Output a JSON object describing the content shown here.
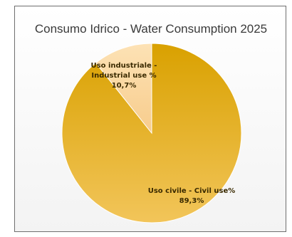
{
  "chart_data": {
    "type": "pie",
    "title": "Consumo Idrico - Water Consumption 2025",
    "start_angle_deg": 0,
    "direction": "clockwise",
    "legend": "none",
    "slices": [
      {
        "label_line1": "Uso civile - Civil use%",
        "label_line2": "89,3%",
        "value": 89.3,
        "color": "#e6b21c"
      },
      {
        "label_line1": "Uso industriale -",
        "label_line1b": "Industrial use %",
        "label_line2": "10,7%",
        "value": 10.7,
        "color": "#fbd9a4"
      }
    ]
  }
}
